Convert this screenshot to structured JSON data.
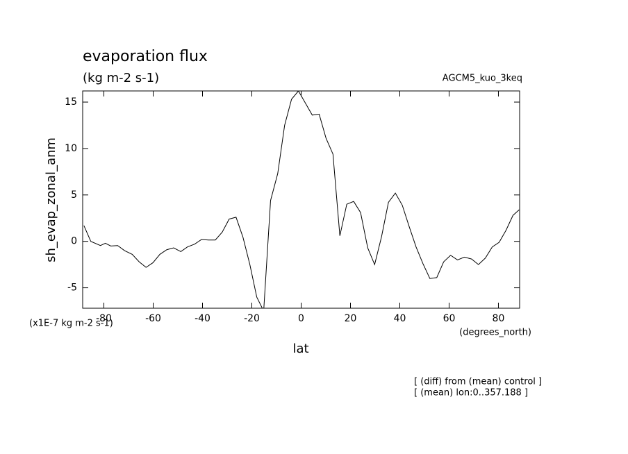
{
  "chart_data": {
    "type": "line",
    "title": "evaporation flux",
    "subtitle": "(kg m-2 s-1)",
    "experiment": "AGCM5_kuo_3keq",
    "ylabel": "sh_evap_zonal_anm",
    "yunits": "(x1E-7 kg m-2 s-1)",
    "xlabel": "lat",
    "xunits": "(degrees_north)",
    "notes": [
      "[ (diff) from (mean) control ]",
      "[ (mean) lon:0..357.188 ]"
    ],
    "xlim": [
      -88.6,
      88.6
    ],
    "ylim": [
      -7.2,
      16.2
    ],
    "xticks": [
      -80,
      -60,
      -40,
      -20,
      0,
      20,
      40,
      60,
      80
    ],
    "yticks": [
      -5,
      0,
      5,
      10,
      15
    ],
    "color": "#000000",
    "x": [
      -88.1,
      -85.3,
      -81.4,
      -79.4,
      -77.2,
      -74.4,
      -71.6,
      -68.5,
      -65.7,
      -62.9,
      -60.1,
      -57.3,
      -54.5,
      -51.7,
      -48.8,
      -46.1,
      -43.2,
      -40.4,
      -37.6,
      -34.8,
      -32.0,
      -29.2,
      -26.4,
      -23.6,
      -20.8,
      -18.0,
      -15.2,
      -12.4,
      -9.5,
      -6.7,
      -3.9,
      -1.1,
      1.7,
      4.5,
      7.3,
      10.1,
      12.9,
      15.7,
      18.5,
      21.3,
      24.1,
      27.0,
      29.8,
      32.6,
      35.4,
      38.2,
      41.0,
      43.8,
      46.6,
      49.4,
      52.2,
      55.0,
      57.8,
      60.6,
      63.4,
      66.2,
      69.1,
      71.9,
      74.7,
      77.5,
      80.3,
      83.1,
      85.9,
      88.4
    ],
    "values": [
      1.7,
      0,
      -0.45,
      -0.2,
      -0.5,
      -0.45,
      -1.0,
      -1.4,
      -2.2,
      -2.8,
      -2.3,
      -1.4,
      -0.9,
      -0.7,
      -1.1,
      -0.6,
      -0.3,
      0.2,
      0.15,
      0.15,
      1.0,
      2.4,
      2.6,
      0.45,
      -2.5,
      -6.0,
      -7.5,
      4.4,
      7.3,
      12.5,
      15.3,
      16.2,
      14.9,
      13.6,
      13.7,
      11.1,
      9.4,
      0.6,
      4.0,
      4.3,
      3.1,
      -0.7,
      -2.5,
      0.5,
      4.2,
      5.2,
      3.9,
      1.6,
      -0.6,
      -2.4,
      -4.0,
      -3.9,
      -2.2,
      -1.5,
      -2.0,
      -1.7,
      -1.9,
      -2.5,
      -1.8,
      -0.6,
      -0.1,
      1.2,
      2.8,
      3.4
    ]
  }
}
